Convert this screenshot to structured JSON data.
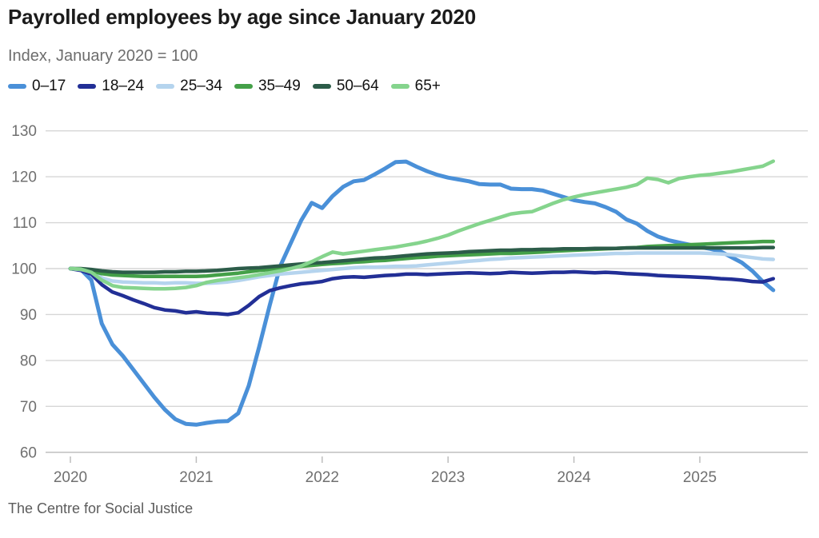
{
  "chart_data": {
    "type": "line",
    "title": "Payrolled employees by age since January 2020",
    "subtitle": "Index, January 2020 = 100",
    "source": "The Centre for Social Justice",
    "x_unit": "month",
    "x_range": [
      "2020-01",
      "2025-08"
    ],
    "x_tick_labels": [
      "2020",
      "2021",
      "2022",
      "2023",
      "2024",
      "2025"
    ],
    "y_ticks": [
      60,
      70,
      80,
      90,
      100,
      110,
      120,
      130
    ],
    "ylim": [
      60,
      130
    ],
    "grid": true,
    "legend_position": "top",
    "series": [
      {
        "name": "0–17",
        "color": "#4a90d8",
        "line_width": 5,
        "values": [
          100,
          99.8,
          97.5,
          88,
          83.5,
          81,
          78,
          75,
          72,
          69.3,
          67.2,
          66.2,
          66,
          66.4,
          66.7,
          66.8,
          68.5,
          74.5,
          83,
          92,
          100.5,
          105.5,
          110.5,
          114.3,
          113.2,
          115.8,
          117.8,
          119,
          119.3,
          120.5,
          121.8,
          123.2,
          123.3,
          122.2,
          121.2,
          120.4,
          119.8,
          119.4,
          119,
          118.4,
          118.3,
          118.3,
          117.4,
          117.3,
          117.3,
          117,
          116.3,
          115.6,
          114.9,
          114.5,
          114.2,
          113.4,
          112.4,
          110.7,
          109.8,
          108.2,
          107,
          106.2,
          105.7,
          105.2,
          104.7,
          104.3,
          103.7,
          102.5,
          101.3,
          99.5,
          97.2,
          95.3
        ]
      },
      {
        "name": "18–24",
        "color": "#222f96",
        "line_width": 4.5,
        "values": [
          100,
          99.6,
          98.8,
          96.5,
          94.9,
          94.1,
          93.2,
          92.4,
          91.5,
          91,
          90.8,
          90.4,
          90.6,
          90.3,
          90.2,
          90,
          90.4,
          92,
          93.9,
          95.2,
          95.8,
          96.3,
          96.7,
          96.9,
          97.2,
          97.8,
          98.1,
          98.2,
          98.1,
          98.3,
          98.5,
          98.6,
          98.8,
          98.8,
          98.7,
          98.8,
          98.9,
          99,
          99.1,
          99,
          98.9,
          99,
          99.2,
          99.1,
          99,
          99.1,
          99.2,
          99.2,
          99.3,
          99.2,
          99.1,
          99.2,
          99.1,
          98.9,
          98.8,
          98.7,
          98.5,
          98.4,
          98.3,
          98.2,
          98.1,
          98,
          97.8,
          97.7,
          97.5,
          97.2,
          97.1,
          97.8
        ]
      },
      {
        "name": "25–34",
        "color": "#b5d4ee",
        "line_width": 4.5,
        "values": [
          100,
          99.8,
          99.3,
          98,
          97.3,
          97.1,
          97,
          96.9,
          96.9,
          96.8,
          96.9,
          96.9,
          96.8,
          96.8,
          96.9,
          97.1,
          97.4,
          97.8,
          98.2,
          98.5,
          98.8,
          99,
          99.2,
          99.4,
          99.6,
          99.8,
          100,
          100.2,
          100.3,
          100.3,
          100.4,
          100.5,
          100.5,
          100.6,
          100.8,
          101,
          101.2,
          101.4,
          101.6,
          101.8,
          102,
          102.1,
          102.3,
          102.4,
          102.5,
          102.6,
          102.7,
          102.8,
          102.9,
          103,
          103.1,
          103.2,
          103.3,
          103.3,
          103.4,
          103.4,
          103.4,
          103.4,
          103.4,
          103.4,
          103.4,
          103.3,
          103.2,
          103,
          102.7,
          102.4,
          102.1,
          102
        ]
      },
      {
        "name": "35–49",
        "color": "#44a048",
        "line_width": 4.5,
        "values": [
          100,
          99.9,
          99.5,
          98.9,
          98.6,
          98.5,
          98.4,
          98.3,
          98.3,
          98.3,
          98.3,
          98.3,
          98.3,
          98.4,
          98.6,
          98.8,
          99,
          99.3,
          99.6,
          99.8,
          100,
          100.3,
          100.5,
          100.7,
          100.9,
          101.1,
          101.2,
          101.4,
          101.5,
          101.7,
          101.8,
          102,
          102.2,
          102.4,
          102.5,
          102.7,
          102.8,
          102.9,
          103,
          103.1,
          103.2,
          103.3,
          103.3,
          103.4,
          103.5,
          103.6,
          103.8,
          103.9,
          104,
          104.1,
          104.2,
          104.3,
          104.4,
          104.5,
          104.6,
          104.8,
          104.9,
          105,
          105.1,
          105.2,
          105.3,
          105.4,
          105.5,
          105.6,
          105.7,
          105.8,
          105.9,
          105.9
        ]
      },
      {
        "name": "50–64",
        "color": "#2c5c49",
        "line_width": 4.5,
        "values": [
          100,
          100,
          99.8,
          99.5,
          99.3,
          99.2,
          99.2,
          99.2,
          99.2,
          99.3,
          99.3,
          99.4,
          99.4,
          99.5,
          99.6,
          99.8,
          100,
          100.1,
          100.2,
          100.4,
          100.6,
          100.8,
          101,
          101.2,
          101.3,
          101.5,
          101.7,
          101.9,
          102.1,
          102.3,
          102.4,
          102.6,
          102.8,
          103,
          103.2,
          103.3,
          103.4,
          103.5,
          103.7,
          103.8,
          103.9,
          104,
          104,
          104.1,
          104.1,
          104.2,
          104.2,
          104.3,
          104.3,
          104.3,
          104.4,
          104.4,
          104.4,
          104.5,
          104.5,
          104.5,
          104.5,
          104.5,
          104.5,
          104.5,
          104.5,
          104.5,
          104.5,
          104.5,
          104.5,
          104.5,
          104.6,
          104.6
        ]
      },
      {
        "name": "65+",
        "color": "#85d48d",
        "line_width": 4.5,
        "values": [
          100,
          99.9,
          99.2,
          97.5,
          96.3,
          95.9,
          95.8,
          95.7,
          95.6,
          95.6,
          95.7,
          95.9,
          96.3,
          97,
          97.4,
          97.7,
          98,
          98.3,
          98.7,
          99.1,
          99.5,
          100,
          100.6,
          101.5,
          102.6,
          103.6,
          103.2,
          103.5,
          103.8,
          104.1,
          104.4,
          104.7,
          105.1,
          105.5,
          106,
          106.6,
          107.3,
          108.2,
          109,
          109.8,
          110.5,
          111.2,
          111.9,
          112.2,
          112.4,
          113.3,
          114.2,
          115,
          115.6,
          116.1,
          116.5,
          116.9,
          117.3,
          117.7,
          118.3,
          119.7,
          119.4,
          118.7,
          119.6,
          120,
          120.3,
          120.5,
          120.8,
          121.1,
          121.5,
          121.9,
          122.3,
          123.4
        ]
      }
    ]
  }
}
